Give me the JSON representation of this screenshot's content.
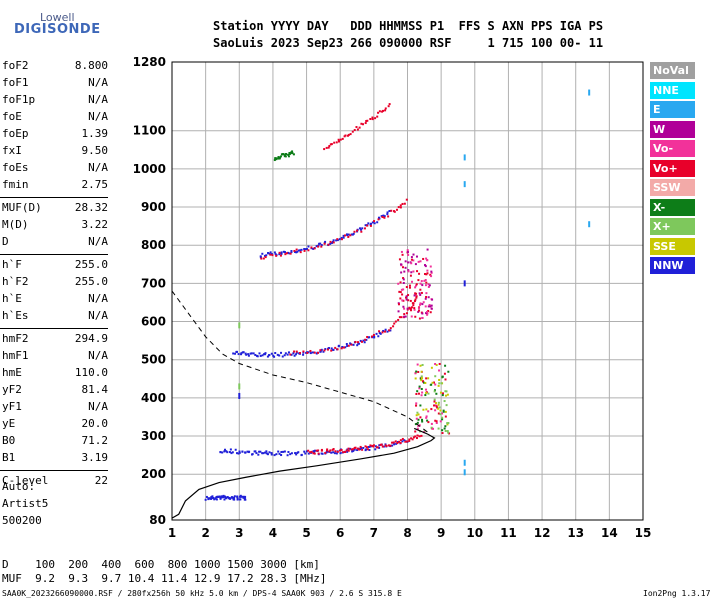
{
  "logo": {
    "top": "Lowell",
    "bottom": "DIGISONDE"
  },
  "header": {
    "line1": "Station YYYY DAY   DDD HHMMSS P1  FFS S AXN PPS IGA PS",
    "line2": "SaoLuis 2023 Sep23 266 090000 RSF     1 715 100 00- 11"
  },
  "params": [
    {
      "name": "foF2",
      "value": "8.800"
    },
    {
      "name": "foF1",
      "value": "N/A"
    },
    {
      "name": "foF1p",
      "value": "N/A"
    },
    {
      "name": "foE",
      "value": "N/A"
    },
    {
      "name": "foEp",
      "value": "1.39"
    },
    {
      "name": "fxI",
      "value": "9.50"
    },
    {
      "name": "foEs",
      "value": "N/A"
    },
    {
      "name": "fmin",
      "value": "2.75"
    },
    {
      "name": "MUF(D)",
      "value": "28.32"
    },
    {
      "name": "M(D)",
      "value": "3.22"
    },
    {
      "name": "D",
      "value": "N/A"
    },
    {
      "name": "h`F",
      "value": "255.0"
    },
    {
      "name": "h`F2",
      "value": "255.0"
    },
    {
      "name": "h`E",
      "value": "N/A"
    },
    {
      "name": "h`Es",
      "value": "N/A"
    },
    {
      "name": "hmF2",
      "value": "294.9"
    },
    {
      "name": "hmF1",
      "value": "N/A"
    },
    {
      "name": "hmE",
      "value": "110.0"
    },
    {
      "name": "yF2",
      "value": "81.4"
    },
    {
      "name": "yF1",
      "value": "N/A"
    },
    {
      "name": "yE",
      "value": "20.0"
    },
    {
      "name": "B0",
      "value": "71.2"
    },
    {
      "name": "B1",
      "value": "3.19"
    },
    {
      "name": "C-level",
      "value": "22"
    }
  ],
  "auto": [
    "Auto:",
    "Artist5",
    "500200"
  ],
  "legend": [
    {
      "label": "NoVal",
      "color": "#a0a0a0"
    },
    {
      "label": "NNE",
      "color": "#00e5ff"
    },
    {
      "label": "E",
      "color": "#29a8f0"
    },
    {
      "label": "W",
      "color": "#b00098"
    },
    {
      "label": "Vo-",
      "color": "#f2329a"
    },
    {
      "label": "Vo+",
      "color": "#e8002a"
    },
    {
      "label": "SSW",
      "color": "#f3aaa8"
    },
    {
      "label": "X-",
      "color": "#0d7d18"
    },
    {
      "label": "X+",
      "color": "#7ec85c"
    },
    {
      "label": "SSE",
      "color": "#c8c800"
    },
    {
      "label": "NNW",
      "color": "#2020d8"
    }
  ],
  "mufTable": {
    "line1": "D    100  200  400  600  800 1000 1500 3000 [km]",
    "line2": "MUF  9.2  9.3  9.7 10.4 11.4 12.9 17.2 28.3 [MHz]"
  },
  "footer": {
    "left": "SAA0K_2023266090000.RSF / 280fx256h 50 kHz 5.0 km / DPS-4 SAA0K 903 / 2.6 S 315.8 E",
    "right": "Ion2Png 1.3.17"
  },
  "chart_data": {
    "type": "scatter",
    "xlim": [
      1,
      15
    ],
    "ylim": [
      80,
      1280
    ],
    "x_ticks": [
      1,
      2,
      3,
      4,
      5,
      6,
      7,
      8,
      9,
      10,
      11,
      12,
      13,
      14,
      15
    ],
    "y_ticks": [
      80,
      200,
      300,
      400,
      500,
      600,
      700,
      800,
      900,
      1000,
      1100,
      1280
    ],
    "grid": true,
    "traces": [
      {
        "color": "#2020d8",
        "points": [
          [
            2.0,
            140
          ],
          [
            2.2,
            140
          ],
          [
            2.4,
            142
          ],
          [
            2.6,
            140
          ],
          [
            2.8,
            140
          ],
          [
            3.0,
            141
          ],
          [
            3.2,
            140
          ]
        ]
      },
      {
        "color": "#2020d8",
        "points": [
          [
            2.4,
            265
          ],
          [
            2.8,
            262
          ],
          [
            3.2,
            260
          ],
          [
            3.6,
            258
          ],
          [
            4.0,
            257
          ],
          [
            4.5,
            257
          ],
          [
            5.0,
            258
          ],
          [
            5.5,
            260
          ],
          [
            6.0,
            263
          ],
          [
            6.5,
            267
          ],
          [
            7.0,
            272
          ],
          [
            7.5,
            280
          ],
          [
            8.0,
            290
          ]
        ]
      },
      {
        "color": "#e8002a",
        "points": [
          [
            5.0,
            260
          ],
          [
            5.5,
            262
          ],
          [
            6.0,
            265
          ],
          [
            6.5,
            268
          ],
          [
            7.0,
            275
          ],
          [
            7.5,
            283
          ],
          [
            8.0,
            293
          ],
          [
            8.4,
            305
          ]
        ]
      },
      {
        "color": "#2020d8",
        "points": [
          [
            2.8,
            520
          ],
          [
            3.2,
            517
          ],
          [
            3.6,
            515
          ],
          [
            4.0,
            515
          ],
          [
            4.5,
            517
          ],
          [
            5.0,
            520
          ],
          [
            5.5,
            527
          ],
          [
            6.0,
            535
          ],
          [
            6.5,
            547
          ],
          [
            7.0,
            563
          ],
          [
            7.5,
            585
          ]
        ]
      },
      {
        "color": "#e8002a",
        "points": [
          [
            4.5,
            518
          ],
          [
            5.5,
            526
          ],
          [
            6.5,
            548
          ],
          [
            7.5,
            588
          ],
          [
            8.0,
            630
          ],
          [
            8.3,
            670
          ]
        ]
      },
      {
        "color": "#2020d8",
        "points": [
          [
            3.6,
            775
          ],
          [
            4.0,
            780
          ],
          [
            4.5,
            785
          ],
          [
            5.0,
            793
          ],
          [
            5.5,
            805
          ],
          [
            6.0,
            820
          ],
          [
            6.5,
            840
          ],
          [
            7.0,
            865
          ],
          [
            7.5,
            890
          ]
        ]
      },
      {
        "color": "#e8002a",
        "points": [
          [
            3.6,
            770
          ],
          [
            4.5,
            783
          ],
          [
            5.5,
            803
          ],
          [
            6.5,
            838
          ],
          [
            7.5,
            888
          ],
          [
            8.0,
            920
          ]
        ]
      },
      {
        "color": "#0d7d18",
        "points": [
          [
            4.0,
            1030
          ],
          [
            4.2,
            1035
          ],
          [
            4.4,
            1040
          ],
          [
            4.6,
            1045
          ]
        ]
      },
      {
        "color": "#e8002a",
        "points": [
          [
            5.5,
            1055
          ],
          [
            6.0,
            1080
          ],
          [
            6.5,
            1110
          ],
          [
            7.0,
            1140
          ],
          [
            7.5,
            1175
          ]
        ]
      }
    ],
    "clusters": [
      {
        "x": 8.7,
        "y": 400,
        "colors": [
          "#e8002a",
          "#f2329a",
          "#7ec85c",
          "#0d7d18",
          "#c8c800"
        ]
      },
      {
        "x": 8.2,
        "y": 700,
        "colors": [
          "#e8002a",
          "#f2329a",
          "#b00098"
        ]
      }
    ],
    "points": [
      {
        "x": 13.4,
        "y": 1200,
        "color": "#29a8f0"
      },
      {
        "x": 13.4,
        "y": 855,
        "color": "#29a8f0"
      },
      {
        "x": 9.7,
        "y": 1030,
        "color": "#29a8f0"
      },
      {
        "x": 9.7,
        "y": 960,
        "color": "#29a8f0"
      },
      {
        "x": 9.7,
        "y": 230,
        "color": "#29a8f0"
      },
      {
        "x": 9.7,
        "y": 205,
        "color": "#29a8f0"
      },
      {
        "x": 9.7,
        "y": 700,
        "color": "#2020d8"
      },
      {
        "x": 3.0,
        "y": 590,
        "color": "#7ec85c"
      },
      {
        "x": 3.0,
        "y": 430,
        "color": "#7ec85c"
      },
      {
        "x": 3.0,
        "y": 405,
        "color": "#2020d8"
      }
    ],
    "profile": [
      [
        1.0,
        85
      ],
      [
        1.2,
        95
      ],
      [
        1.4,
        130
      ],
      [
        1.8,
        160
      ],
      [
        2.4,
        178
      ],
      [
        3.2,
        192
      ],
      [
        4.2,
        208
      ],
      [
        5.3,
        222
      ],
      [
        6.6,
        240
      ],
      [
        7.6,
        255
      ],
      [
        8.3,
        272
      ],
      [
        8.7,
        288
      ],
      [
        8.8,
        295
      ],
      [
        8.6,
        305
      ],
      [
        8.2,
        320
      ]
    ],
    "dashed": [
      [
        1.0,
        680
      ],
      [
        1.5,
        620
      ],
      [
        2.0,
        560
      ],
      [
        2.5,
        515
      ],
      [
        3.0,
        490
      ],
      [
        4.0,
        460
      ],
      [
        5.0,
        440
      ],
      [
        6.0,
        415
      ],
      [
        7.0,
        390
      ],
      [
        8.0,
        350
      ],
      [
        8.6,
        310
      ]
    ]
  }
}
